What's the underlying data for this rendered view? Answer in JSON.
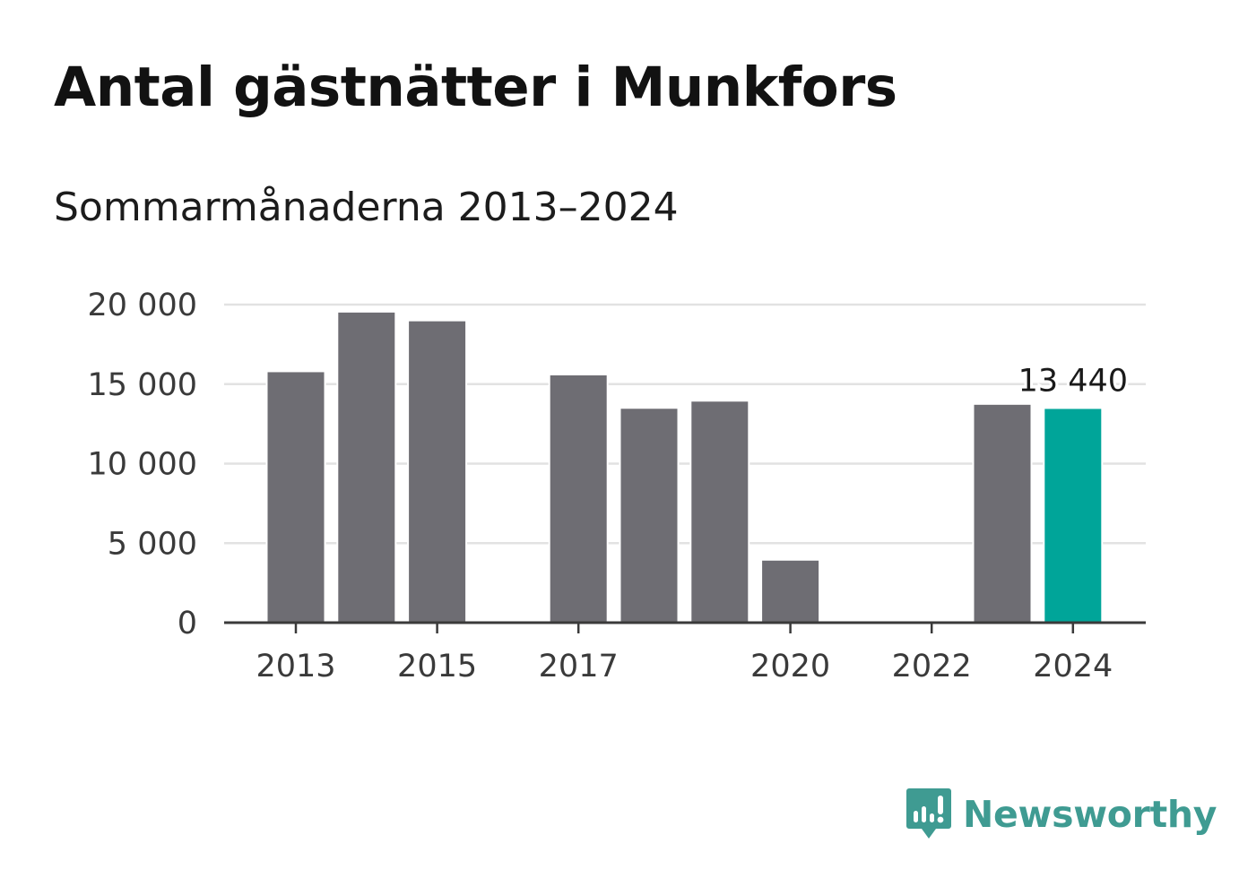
{
  "title": "Antal gästnätter i Munkfors",
  "subtitle": "Sommarmånaderna 2013–2024",
  "brand": {
    "name": "Newsworthy",
    "color": "#3f9b92",
    "icon": "newsworthy-logo-icon"
  },
  "colors": {
    "bar": "#6e6d73",
    "highlight": "#00a599",
    "grid": "#e2e2e2",
    "axis": "#3a3a3a"
  },
  "chart_data": {
    "type": "bar",
    "title": "Antal gästnätter i Munkfors",
    "subtitle": "Sommarmånaderna 2013–2024",
    "xlabel": "",
    "ylabel": "",
    "x": [
      2013,
      2014,
      2015,
      2016,
      2017,
      2018,
      2019,
      2020,
      2021,
      2022,
      2023,
      2024
    ],
    "values": [
      15750,
      19500,
      18950,
      null,
      15550,
      13450,
      13900,
      3900,
      null,
      null,
      13700,
      13440
    ],
    "highlight_index": 11,
    "highlight_label": "13 440",
    "ylim": [
      0,
      20000
    ],
    "yticks": [
      0,
      5000,
      10000,
      15000,
      20000
    ],
    "ytick_labels": [
      "0",
      "5 000",
      "10 000",
      "15 000",
      "20 000"
    ],
    "xticks": [
      2013,
      2015,
      2017,
      2020,
      2022,
      2024
    ],
    "xtick_labels": [
      "2013",
      "2015",
      "2017",
      "2020",
      "2022",
      "2024"
    ],
    "grid": true,
    "legend": "none"
  }
}
